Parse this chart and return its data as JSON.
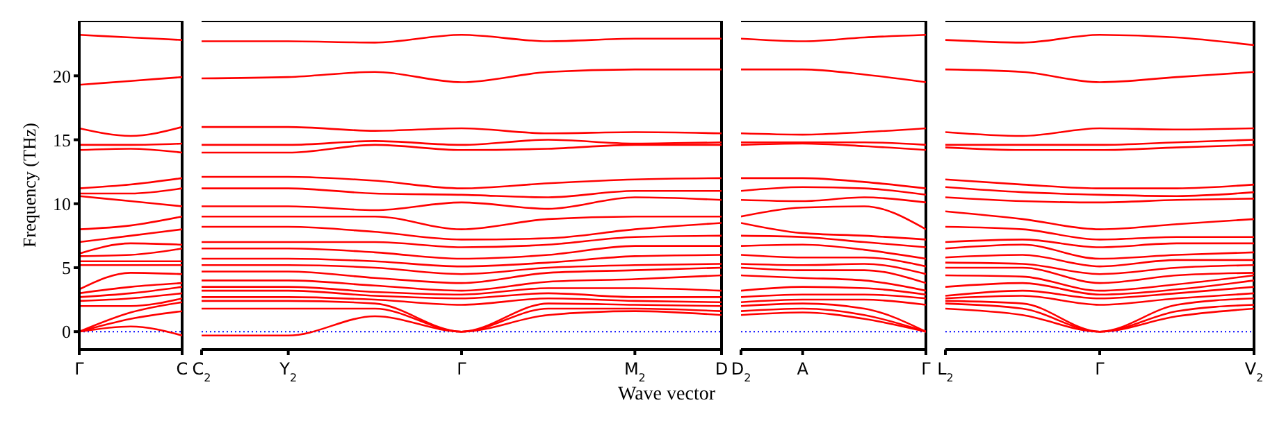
{
  "chart_data": [
    {
      "type": "line",
      "ylabel": "Frequency (THz)",
      "categories": [
        "Γ",
        null,
        "C"
      ],
      "ylim": [
        -1.4,
        24.3
      ],
      "yticks": [
        0,
        5,
        10,
        15,
        20
      ],
      "ref_lines": [
        {
          "axis": "y",
          "value": 0,
          "color": "#0000ff",
          "line_style": "dotted"
        }
      ],
      "series": [
        {
          "color": "#ff0000",
          "values": [
            0,
            0.4,
            -0.3
          ]
        },
        {
          "color": "#ff0000",
          "values": [
            0,
            1.0,
            1.6
          ]
        },
        {
          "color": "#ff0000",
          "values": [
            0,
            1.5,
            2.3
          ]
        },
        {
          "color": "#ff0000",
          "values": [
            2.0,
            2.0,
            2.6
          ]
        },
        {
          "color": "#ff0000",
          "values": [
            2.4,
            2.6,
            3.0
          ]
        },
        {
          "color": "#ff0000",
          "values": [
            2.7,
            3.0,
            3.5
          ]
        },
        {
          "color": "#ff0000",
          "values": [
            3.0,
            3.5,
            3.8
          ]
        },
        {
          "color": "#ff0000",
          "values": [
            3.3,
            4.6,
            4.5
          ]
        },
        {
          "color": "#ff0000",
          "values": [
            5.2,
            5.2,
            5.2
          ]
        },
        {
          "color": "#ff0000",
          "values": [
            5.5,
            5.5,
            5.5
          ]
        },
        {
          "color": "#ff0000",
          "values": [
            5.9,
            6.0,
            6.5
          ]
        },
        {
          "color": "#ff0000",
          "values": [
            6.1,
            6.9,
            6.8
          ]
        },
        {
          "color": "#ff0000",
          "values": [
            7.0,
            7.5,
            8.0
          ]
        },
        {
          "color": "#ff0000",
          "values": [
            8.0,
            8.3,
            9.0
          ]
        },
        {
          "color": "#ff0000",
          "values": [
            10.6,
            10.2,
            9.8
          ]
        },
        {
          "color": "#ff0000",
          "values": [
            10.8,
            10.8,
            11.2
          ]
        },
        {
          "color": "#ff0000",
          "values": [
            11.2,
            11.5,
            12.0
          ]
        },
        {
          "color": "#ff0000",
          "values": [
            14.2,
            14.3,
            14.0
          ]
        },
        {
          "color": "#ff0000",
          "values": [
            14.6,
            14.6,
            14.7
          ]
        },
        {
          "color": "#ff0000",
          "values": [
            15.9,
            15.3,
            16.0
          ]
        },
        {
          "color": "#ff0000",
          "values": [
            19.3,
            19.6,
            19.9
          ]
        },
        {
          "color": "#ff0000",
          "values": [
            23.2,
            23.0,
            22.8
          ]
        }
      ]
    },
    {
      "type": "line",
      "xlabel": "Wave vector",
      "tick_labels": "x",
      "categories": [
        "C$_{2}$",
        "Y$_{2}$",
        null,
        "Γ",
        null,
        "M$_{2}$",
        "D"
      ],
      "ylim": [
        -1.4,
        24.3
      ],
      "yticks": [
        0,
        5,
        10,
        15,
        20
      ],
      "ref_lines": [
        {
          "axis": "y",
          "value": 0,
          "color": "#0000ff",
          "line_style": "dotted"
        }
      ],
      "series": [
        {
          "color": "#ff0000",
          "values": [
            -0.3,
            -0.3,
            1.2,
            0,
            1.3,
            1.6,
            1.3
          ]
        },
        {
          "color": "#ff0000",
          "values": [
            1.8,
            1.8,
            1.8,
            0,
            1.8,
            1.8,
            1.6
          ]
        },
        {
          "color": "#ff0000",
          "values": [
            2.4,
            2.4,
            2.2,
            0,
            2.2,
            2.1,
            2.0
          ]
        },
        {
          "color": "#ff0000",
          "values": [
            2.7,
            2.7,
            2.5,
            2.1,
            2.6,
            2.4,
            2.3
          ]
        },
        {
          "color": "#ff0000",
          "values": [
            3.2,
            3.2,
            2.8,
            2.6,
            3.0,
            2.7,
            2.7
          ]
        },
        {
          "color": "#ff0000",
          "values": [
            3.5,
            3.5,
            3.1,
            2.9,
            3.4,
            3.4,
            3.2
          ]
        },
        {
          "color": "#ff0000",
          "values": [
            4.0,
            4.0,
            3.6,
            3.2,
            3.9,
            4.1,
            4.4
          ]
        },
        {
          "color": "#ff0000",
          "values": [
            4.7,
            4.7,
            4.2,
            3.8,
            4.6,
            4.8,
            5.0
          ]
        },
        {
          "color": "#ff0000",
          "values": [
            5.2,
            5.2,
            5.0,
            4.5,
            5.0,
            5.2,
            5.3
          ]
        },
        {
          "color": "#ff0000",
          "values": [
            5.7,
            5.7,
            5.5,
            5.1,
            5.4,
            5.9,
            6.0
          ]
        },
        {
          "color": "#ff0000",
          "values": [
            6.5,
            6.5,
            6.2,
            5.7,
            6.0,
            6.7,
            6.7
          ]
        },
        {
          "color": "#ff0000",
          "values": [
            7.0,
            7.0,
            7.0,
            6.6,
            6.8,
            7.4,
            7.5
          ]
        },
        {
          "color": "#ff0000",
          "values": [
            8.2,
            8.2,
            7.8,
            7.2,
            7.3,
            8.0,
            8.5
          ]
        },
        {
          "color": "#ff0000",
          "values": [
            9.0,
            9.0,
            9.0,
            8.0,
            8.8,
            9.0,
            9.0
          ]
        },
        {
          "color": "#ff0000",
          "values": [
            9.8,
            9.8,
            9.5,
            10.1,
            9.6,
            10.5,
            10.3
          ]
        },
        {
          "color": "#ff0000",
          "values": [
            11.2,
            11.2,
            10.8,
            10.7,
            10.5,
            11.0,
            11.0
          ]
        },
        {
          "color": "#ff0000",
          "values": [
            12.1,
            12.1,
            11.8,
            11.2,
            11.6,
            11.9,
            12.0
          ]
        },
        {
          "color": "#ff0000",
          "values": [
            14.0,
            14.0,
            14.6,
            14.2,
            14.3,
            14.6,
            14.6
          ]
        },
        {
          "color": "#ff0000",
          "values": [
            14.6,
            14.6,
            14.9,
            14.6,
            15.0,
            14.7,
            14.8
          ]
        },
        {
          "color": "#ff0000",
          "values": [
            16.0,
            16.0,
            15.7,
            15.9,
            15.5,
            15.6,
            15.5
          ]
        },
        {
          "color": "#ff0000",
          "values": [
            19.8,
            19.9,
            20.3,
            19.5,
            20.3,
            20.5,
            20.5
          ]
        },
        {
          "color": "#ff0000",
          "values": [
            22.7,
            22.7,
            22.6,
            23.2,
            22.7,
            22.9,
            22.9
          ]
        }
      ]
    },
    {
      "type": "line",
      "tick_labels": "x",
      "categories": [
        "D$_{2}$",
        "A",
        null,
        "Γ"
      ],
      "ylim": [
        -1.4,
        24.3
      ],
      "yticks": [
        0,
        5,
        10,
        15,
        20
      ],
      "ref_lines": [
        {
          "axis": "y",
          "value": 0,
          "color": "#0000ff",
          "line_style": "dotted"
        }
      ],
      "series": [
        {
          "color": "#ff0000",
          "values": [
            1.3,
            1.5,
            1.0,
            0
          ]
        },
        {
          "color": "#ff0000",
          "values": [
            1.6,
            1.8,
            1.3,
            0
          ]
        },
        {
          "color": "#ff0000",
          "values": [
            2.0,
            2.2,
            1.8,
            0
          ]
        },
        {
          "color": "#ff0000",
          "values": [
            2.3,
            2.5,
            2.5,
            2.1
          ]
        },
        {
          "color": "#ff0000",
          "values": [
            2.7,
            2.9,
            2.9,
            2.6
          ]
        },
        {
          "color": "#ff0000",
          "values": [
            3.2,
            3.5,
            3.4,
            2.9
          ]
        },
        {
          "color": "#ff0000",
          "values": [
            4.4,
            4.2,
            4.0,
            3.2
          ]
        },
        {
          "color": "#ff0000",
          "values": [
            5.0,
            4.8,
            4.8,
            3.8
          ]
        },
        {
          "color": "#ff0000",
          "values": [
            5.3,
            5.2,
            5.3,
            4.5
          ]
        },
        {
          "color": "#ff0000",
          "values": [
            6.0,
            5.8,
            5.8,
            5.1
          ]
        },
        {
          "color": "#ff0000",
          "values": [
            6.7,
            6.8,
            6.4,
            5.7
          ]
        },
        {
          "color": "#ff0000",
          "values": [
            7.5,
            7.4,
            7.0,
            6.6
          ]
        },
        {
          "color": "#ff0000",
          "values": [
            8.5,
            7.7,
            7.5,
            7.2
          ]
        },
        {
          "color": "#ff0000",
          "values": [
            9.0,
            9.7,
            9.8,
            8.0
          ]
        },
        {
          "color": "#ff0000",
          "values": [
            10.3,
            10.2,
            10.5,
            10.1
          ]
        },
        {
          "color": "#ff0000",
          "values": [
            11.0,
            11.3,
            11.2,
            10.7
          ]
        },
        {
          "color": "#ff0000",
          "values": [
            12.0,
            12.0,
            11.7,
            11.2
          ]
        },
        {
          "color": "#ff0000",
          "values": [
            14.6,
            14.7,
            14.5,
            14.2
          ]
        },
        {
          "color": "#ff0000",
          "values": [
            14.8,
            14.8,
            14.8,
            14.6
          ]
        },
        {
          "color": "#ff0000",
          "values": [
            15.5,
            15.4,
            15.6,
            15.9
          ]
        },
        {
          "color": "#ff0000",
          "values": [
            20.5,
            20.5,
            20.1,
            19.5
          ]
        },
        {
          "color": "#ff0000",
          "values": [
            22.9,
            22.7,
            23.0,
            23.2
          ]
        }
      ]
    },
    {
      "type": "line",
      "tick_labels": "x",
      "categories": [
        "L$_{2}$",
        null,
        "Γ",
        null,
        "V$_{2}$"
      ],
      "ylim": [
        -1.4,
        24.3
      ],
      "yticks": [
        0,
        5,
        10,
        15,
        20
      ],
      "ref_lines": [
        {
          "axis": "y",
          "value": 0,
          "color": "#0000ff",
          "line_style": "dotted"
        }
      ],
      "series": [
        {
          "color": "#ff0000",
          "values": [
            1.8,
            1.3,
            0,
            1.2,
            1.8
          ]
        },
        {
          "color": "#ff0000",
          "values": [
            2.2,
            1.8,
            0,
            1.6,
            2.1
          ]
        },
        {
          "color": "#ff0000",
          "values": [
            2.4,
            2.2,
            0,
            2.1,
            2.6
          ]
        },
        {
          "color": "#ff0000",
          "values": [
            2.6,
            2.8,
            2.1,
            2.6,
            3.0
          ]
        },
        {
          "color": "#ff0000",
          "values": [
            2.8,
            3.2,
            2.6,
            3.0,
            3.5
          ]
        },
        {
          "color": "#ff0000",
          "values": [
            3.5,
            3.8,
            2.9,
            3.3,
            4.0
          ]
        },
        {
          "color": "#ff0000",
          "values": [
            4.4,
            4.3,
            3.2,
            3.7,
            4.4
          ]
        },
        {
          "color": "#ff0000",
          "values": [
            5.0,
            5.0,
            3.8,
            4.4,
            4.6
          ]
        },
        {
          "color": "#ff0000",
          "values": [
            5.4,
            5.3,
            4.5,
            5.0,
            5.2
          ]
        },
        {
          "color": "#ff0000",
          "values": [
            5.8,
            6.0,
            5.1,
            5.6,
            5.6
          ]
        },
        {
          "color": "#ff0000",
          "values": [
            6.5,
            6.8,
            5.7,
            6.0,
            6.2
          ]
        },
        {
          "color": "#ff0000",
          "values": [
            7.0,
            7.2,
            6.6,
            6.9,
            6.9
          ]
        },
        {
          "color": "#ff0000",
          "values": [
            8.2,
            8.0,
            7.2,
            7.4,
            7.4
          ]
        },
        {
          "color": "#ff0000",
          "values": [
            9.4,
            8.8,
            8.0,
            8.4,
            8.8
          ]
        },
        {
          "color": "#ff0000",
          "values": [
            10.5,
            10.2,
            10.1,
            10.3,
            10.4
          ]
        },
        {
          "color": "#ff0000",
          "values": [
            11.3,
            10.9,
            10.7,
            10.6,
            10.9
          ]
        },
        {
          "color": "#ff0000",
          "values": [
            11.9,
            11.5,
            11.2,
            11.2,
            11.5
          ]
        },
        {
          "color": "#ff0000",
          "values": [
            14.4,
            14.2,
            14.2,
            14.4,
            14.6
          ]
        },
        {
          "color": "#ff0000",
          "values": [
            14.6,
            14.6,
            14.6,
            14.8,
            15.0
          ]
        },
        {
          "color": "#ff0000",
          "values": [
            15.6,
            15.3,
            15.9,
            15.8,
            15.9
          ]
        },
        {
          "color": "#ff0000",
          "values": [
            20.5,
            20.3,
            19.5,
            19.9,
            20.3
          ]
        },
        {
          "color": "#ff0000",
          "values": [
            22.8,
            22.6,
            23.2,
            23.0,
            22.4
          ]
        }
      ]
    }
  ]
}
